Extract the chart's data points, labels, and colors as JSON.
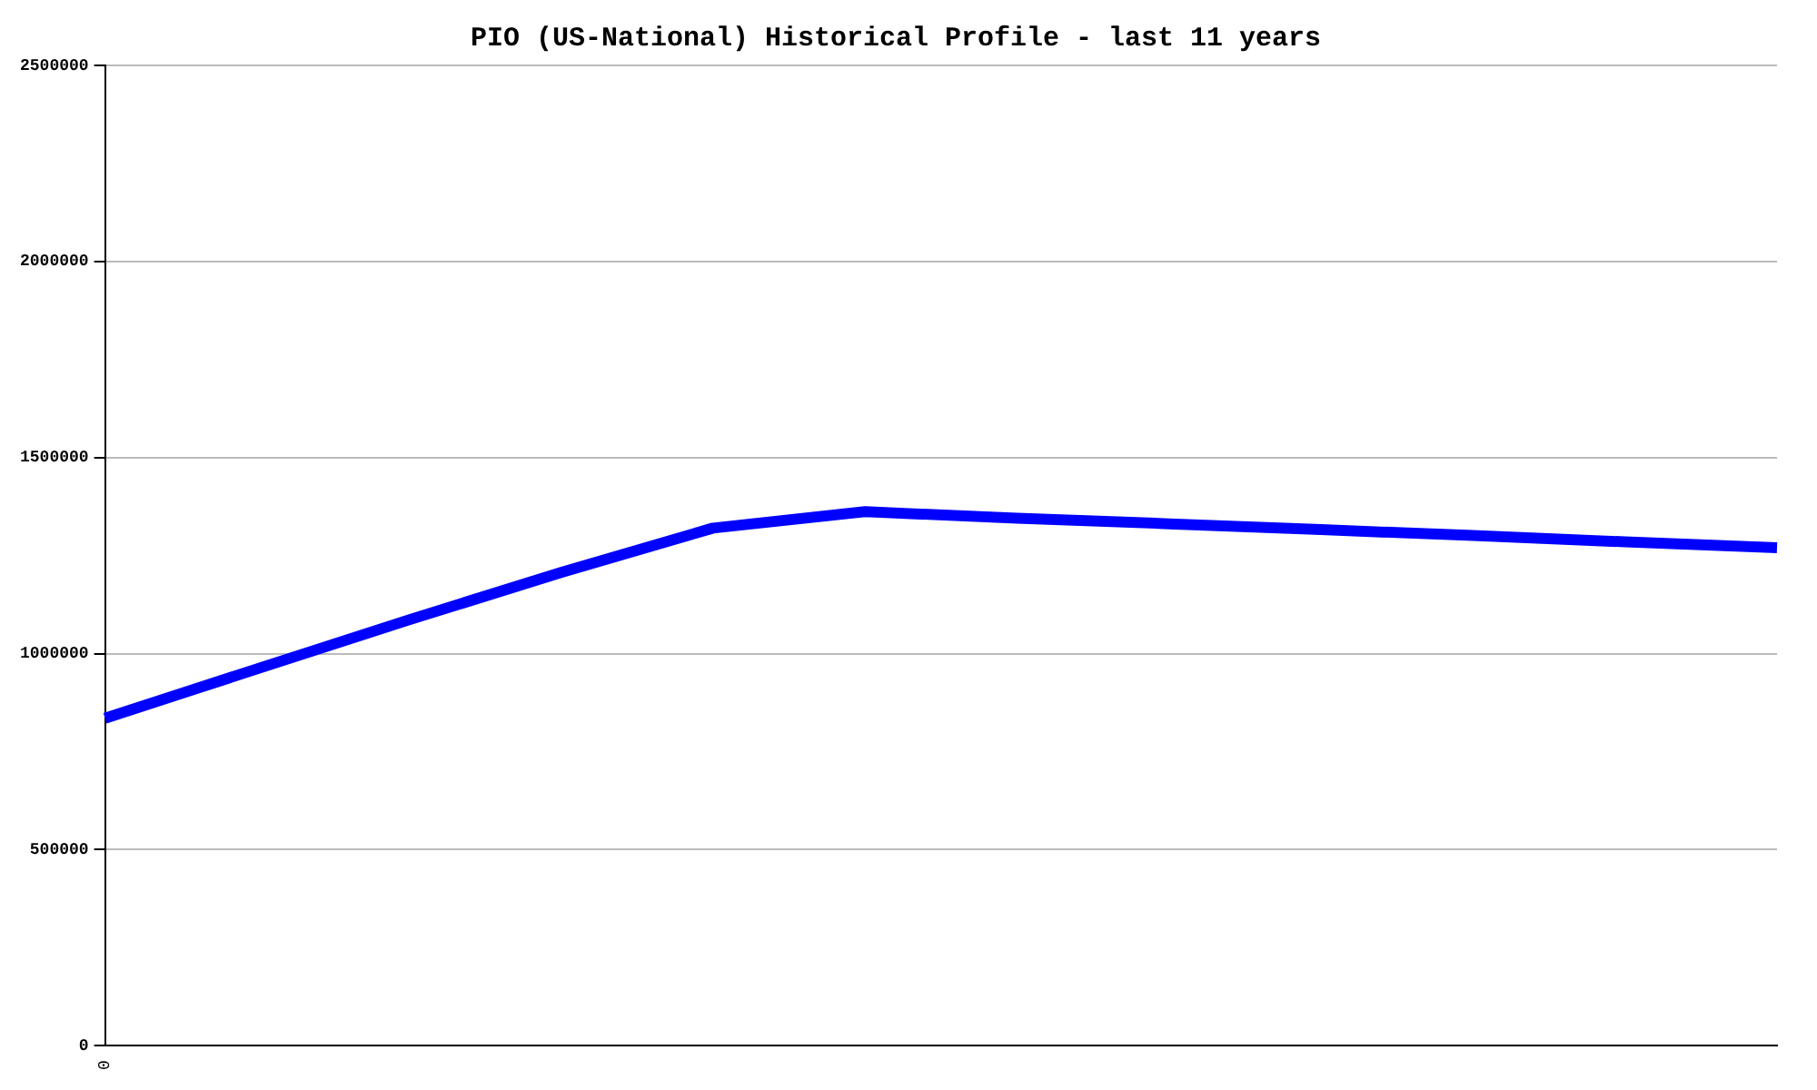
{
  "chart_data": {
    "type": "line",
    "title": "PIO (US-National) Historical Profile - last 11 years",
    "categories": [
      "0",
      null,
      null,
      null,
      null,
      null,
      null,
      null,
      null,
      null,
      null,
      null
    ],
    "series": [
      {
        "color": "#0000ff",
        "values": [
          835000,
          961000,
          1086000,
          1207000,
          1320000,
          1362000,
          1345000,
          1331000,
          1316000,
          1301000,
          1285000,
          1270000
        ]
      }
    ],
    "ylim": [
      0,
      2500000
    ],
    "yticks": [
      0,
      500000,
      1000000,
      1500000,
      2000000,
      2500000
    ],
    "grid": "y",
    "legend": false,
    "marker": "none",
    "line_style": "solid"
  }
}
